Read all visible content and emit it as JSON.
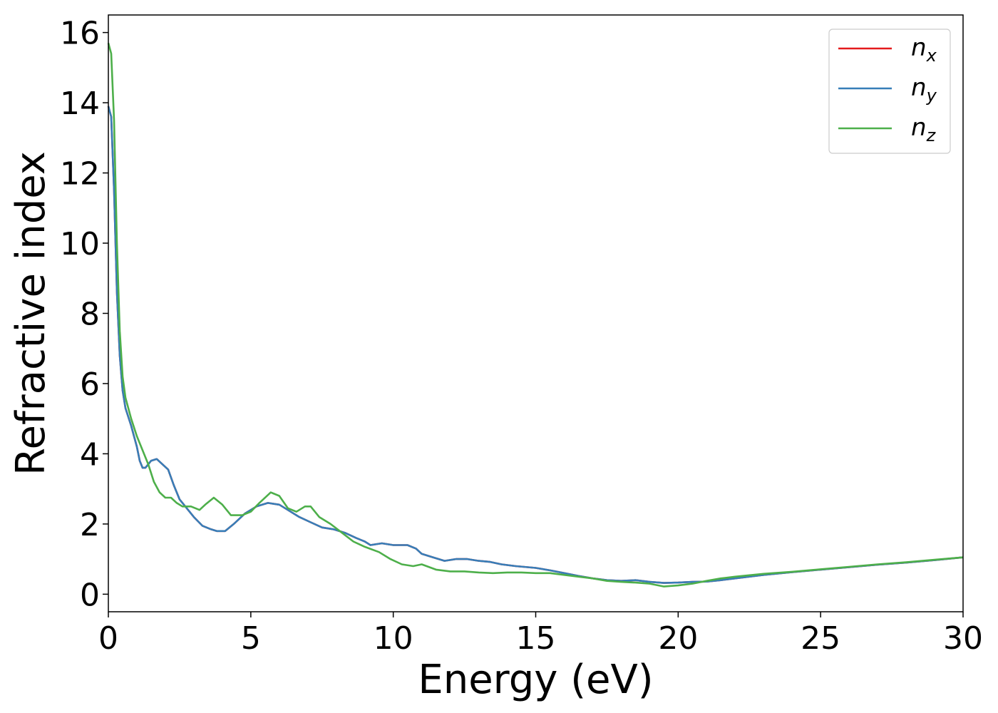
{
  "chart_data": {
    "type": "line",
    "title": "",
    "xlabel": "Energy (eV)",
    "ylabel": "Refractive index",
    "xlim": [
      0,
      30
    ],
    "ylim": [
      -0.5,
      16.5
    ],
    "xticks": [
      0,
      5,
      10,
      15,
      20,
      25,
      30
    ],
    "yticks": [
      0,
      2,
      4,
      6,
      8,
      10,
      12,
      14,
      16
    ],
    "grid": false,
    "legend_position": "top-right",
    "series": [
      {
        "name": "n_x",
        "legend_main": "n",
        "legend_sub": "x",
        "color": "#e41a1c",
        "points": [
          [
            0,
            13.9
          ],
          [
            0.1,
            13.6
          ],
          [
            0.2,
            11.5
          ],
          [
            0.3,
            8.6
          ],
          [
            0.4,
            6.8
          ],
          [
            0.5,
            5.8
          ],
          [
            0.6,
            5.3
          ],
          [
            0.8,
            4.8
          ],
          [
            1.0,
            4.2
          ],
          [
            1.1,
            3.8
          ],
          [
            1.2,
            3.6
          ],
          [
            1.3,
            3.6
          ],
          [
            1.5,
            3.8
          ],
          [
            1.7,
            3.85
          ],
          [
            1.9,
            3.7
          ],
          [
            2.1,
            3.55
          ],
          [
            2.3,
            3.1
          ],
          [
            2.5,
            2.7
          ],
          [
            2.8,
            2.4
          ],
          [
            3.0,
            2.2
          ],
          [
            3.3,
            1.95
          ],
          [
            3.6,
            1.85
          ],
          [
            3.8,
            1.8
          ],
          [
            4.1,
            1.8
          ],
          [
            4.4,
            2.0
          ],
          [
            4.8,
            2.3
          ],
          [
            5.2,
            2.5
          ],
          [
            5.6,
            2.6
          ],
          [
            6.0,
            2.55
          ],
          [
            6.3,
            2.4
          ],
          [
            6.7,
            2.2
          ],
          [
            7.1,
            2.05
          ],
          [
            7.5,
            1.9
          ],
          [
            7.9,
            1.85
          ],
          [
            8.3,
            1.75
          ],
          [
            8.7,
            1.6
          ],
          [
            9.0,
            1.5
          ],
          [
            9.2,
            1.4
          ],
          [
            9.6,
            1.45
          ],
          [
            10.0,
            1.4
          ],
          [
            10.5,
            1.4
          ],
          [
            10.8,
            1.3
          ],
          [
            11.0,
            1.15
          ],
          [
            11.4,
            1.05
          ],
          [
            11.8,
            0.95
          ],
          [
            12.2,
            1.0
          ],
          [
            12.6,
            1.0
          ],
          [
            13.0,
            0.95
          ],
          [
            13.4,
            0.92
          ],
          [
            13.8,
            0.85
          ],
          [
            14.3,
            0.8
          ],
          [
            15.0,
            0.75
          ],
          [
            15.5,
            0.68
          ],
          [
            16.0,
            0.6
          ],
          [
            16.5,
            0.52
          ],
          [
            17.0,
            0.45
          ],
          [
            17.5,
            0.4
          ],
          [
            18.0,
            0.38
          ],
          [
            18.5,
            0.4
          ],
          [
            19.0,
            0.35
          ],
          [
            19.5,
            0.32
          ],
          [
            20.0,
            0.33
          ],
          [
            20.5,
            0.35
          ],
          [
            21.0,
            0.36
          ],
          [
            21.5,
            0.4
          ],
          [
            22.0,
            0.45
          ],
          [
            23.0,
            0.55
          ],
          [
            24.0,
            0.63
          ],
          [
            25.0,
            0.7
          ],
          [
            26.0,
            0.77
          ],
          [
            27.0,
            0.84
          ],
          [
            28.0,
            0.9
          ],
          [
            29.0,
            0.97
          ],
          [
            30.0,
            1.05
          ]
        ]
      },
      {
        "name": "n_y",
        "legend_main": "n",
        "legend_sub": "y",
        "color": "#377eb8",
        "points": [
          [
            0,
            13.9
          ],
          [
            0.1,
            13.6
          ],
          [
            0.2,
            11.5
          ],
          [
            0.3,
            8.6
          ],
          [
            0.4,
            6.8
          ],
          [
            0.5,
            5.8
          ],
          [
            0.6,
            5.3
          ],
          [
            0.8,
            4.8
          ],
          [
            1.0,
            4.2
          ],
          [
            1.1,
            3.8
          ],
          [
            1.2,
            3.6
          ],
          [
            1.3,
            3.6
          ],
          [
            1.5,
            3.8
          ],
          [
            1.7,
            3.85
          ],
          [
            1.9,
            3.7
          ],
          [
            2.1,
            3.55
          ],
          [
            2.3,
            3.1
          ],
          [
            2.5,
            2.7
          ],
          [
            2.8,
            2.4
          ],
          [
            3.0,
            2.2
          ],
          [
            3.3,
            1.95
          ],
          [
            3.6,
            1.85
          ],
          [
            3.8,
            1.8
          ],
          [
            4.1,
            1.8
          ],
          [
            4.4,
            2.0
          ],
          [
            4.8,
            2.3
          ],
          [
            5.2,
            2.5
          ],
          [
            5.6,
            2.6
          ],
          [
            6.0,
            2.55
          ],
          [
            6.3,
            2.4
          ],
          [
            6.7,
            2.2
          ],
          [
            7.1,
            2.05
          ],
          [
            7.5,
            1.9
          ],
          [
            7.9,
            1.85
          ],
          [
            8.3,
            1.75
          ],
          [
            8.7,
            1.6
          ],
          [
            9.0,
            1.5
          ],
          [
            9.2,
            1.4
          ],
          [
            9.6,
            1.45
          ],
          [
            10.0,
            1.4
          ],
          [
            10.5,
            1.4
          ],
          [
            10.8,
            1.3
          ],
          [
            11.0,
            1.15
          ],
          [
            11.4,
            1.05
          ],
          [
            11.8,
            0.95
          ],
          [
            12.2,
            1.0
          ],
          [
            12.6,
            1.0
          ],
          [
            13.0,
            0.95
          ],
          [
            13.4,
            0.92
          ],
          [
            13.8,
            0.85
          ],
          [
            14.3,
            0.8
          ],
          [
            15.0,
            0.75
          ],
          [
            15.5,
            0.68
          ],
          [
            16.0,
            0.6
          ],
          [
            16.5,
            0.52
          ],
          [
            17.0,
            0.45
          ],
          [
            17.5,
            0.4
          ],
          [
            18.0,
            0.38
          ],
          [
            18.5,
            0.4
          ],
          [
            19.0,
            0.35
          ],
          [
            19.5,
            0.32
          ],
          [
            20.0,
            0.33
          ],
          [
            20.5,
            0.35
          ],
          [
            21.0,
            0.36
          ],
          [
            21.5,
            0.4
          ],
          [
            22.0,
            0.45
          ],
          [
            23.0,
            0.55
          ],
          [
            24.0,
            0.63
          ],
          [
            25.0,
            0.7
          ],
          [
            26.0,
            0.77
          ],
          [
            27.0,
            0.84
          ],
          [
            28.0,
            0.9
          ],
          [
            29.0,
            0.97
          ],
          [
            30.0,
            1.05
          ]
        ]
      },
      {
        "name": "n_z",
        "legend_main": "n",
        "legend_sub": "z",
        "color": "#4daf4a",
        "points": [
          [
            0,
            15.7
          ],
          [
            0.1,
            15.4
          ],
          [
            0.2,
            13.5
          ],
          [
            0.3,
            10.0
          ],
          [
            0.4,
            7.5
          ],
          [
            0.5,
            6.2
          ],
          [
            0.6,
            5.6
          ],
          [
            0.8,
            5.0
          ],
          [
            1.0,
            4.5
          ],
          [
            1.2,
            4.1
          ],
          [
            1.4,
            3.7
          ],
          [
            1.6,
            3.2
          ],
          [
            1.8,
            2.9
          ],
          [
            2.0,
            2.75
          ],
          [
            2.2,
            2.75
          ],
          [
            2.4,
            2.6
          ],
          [
            2.6,
            2.5
          ],
          [
            2.9,
            2.5
          ],
          [
            3.2,
            2.4
          ],
          [
            3.4,
            2.55
          ],
          [
            3.7,
            2.75
          ],
          [
            4.0,
            2.55
          ],
          [
            4.3,
            2.25
          ],
          [
            4.7,
            2.25
          ],
          [
            5.0,
            2.35
          ],
          [
            5.3,
            2.6
          ],
          [
            5.7,
            2.9
          ],
          [
            6.0,
            2.8
          ],
          [
            6.3,
            2.45
          ],
          [
            6.6,
            2.35
          ],
          [
            6.9,
            2.5
          ],
          [
            7.1,
            2.5
          ],
          [
            7.4,
            2.2
          ],
          [
            7.8,
            2.0
          ],
          [
            8.2,
            1.75
          ],
          [
            8.6,
            1.5
          ],
          [
            9.0,
            1.35
          ],
          [
            9.5,
            1.2
          ],
          [
            9.9,
            1.0
          ],
          [
            10.3,
            0.85
          ],
          [
            10.7,
            0.8
          ],
          [
            11.0,
            0.85
          ],
          [
            11.5,
            0.7
          ],
          [
            12.0,
            0.65
          ],
          [
            12.5,
            0.65
          ],
          [
            13.0,
            0.62
          ],
          [
            13.5,
            0.6
          ],
          [
            14.0,
            0.62
          ],
          [
            14.5,
            0.62
          ],
          [
            15.0,
            0.6
          ],
          [
            15.5,
            0.6
          ],
          [
            16.0,
            0.55
          ],
          [
            16.5,
            0.5
          ],
          [
            17.0,
            0.45
          ],
          [
            17.5,
            0.38
          ],
          [
            18.0,
            0.35
          ],
          [
            18.5,
            0.33
          ],
          [
            19.0,
            0.3
          ],
          [
            19.5,
            0.22
          ],
          [
            20.0,
            0.25
          ],
          [
            20.5,
            0.3
          ],
          [
            21.0,
            0.38
          ],
          [
            21.5,
            0.45
          ],
          [
            22.0,
            0.5
          ],
          [
            23.0,
            0.58
          ],
          [
            24.0,
            0.64
          ],
          [
            25.0,
            0.71
          ],
          [
            26.0,
            0.78
          ],
          [
            27.0,
            0.85
          ],
          [
            28.0,
            0.91
          ],
          [
            29.0,
            0.98
          ],
          [
            30.0,
            1.05
          ]
        ]
      }
    ]
  }
}
